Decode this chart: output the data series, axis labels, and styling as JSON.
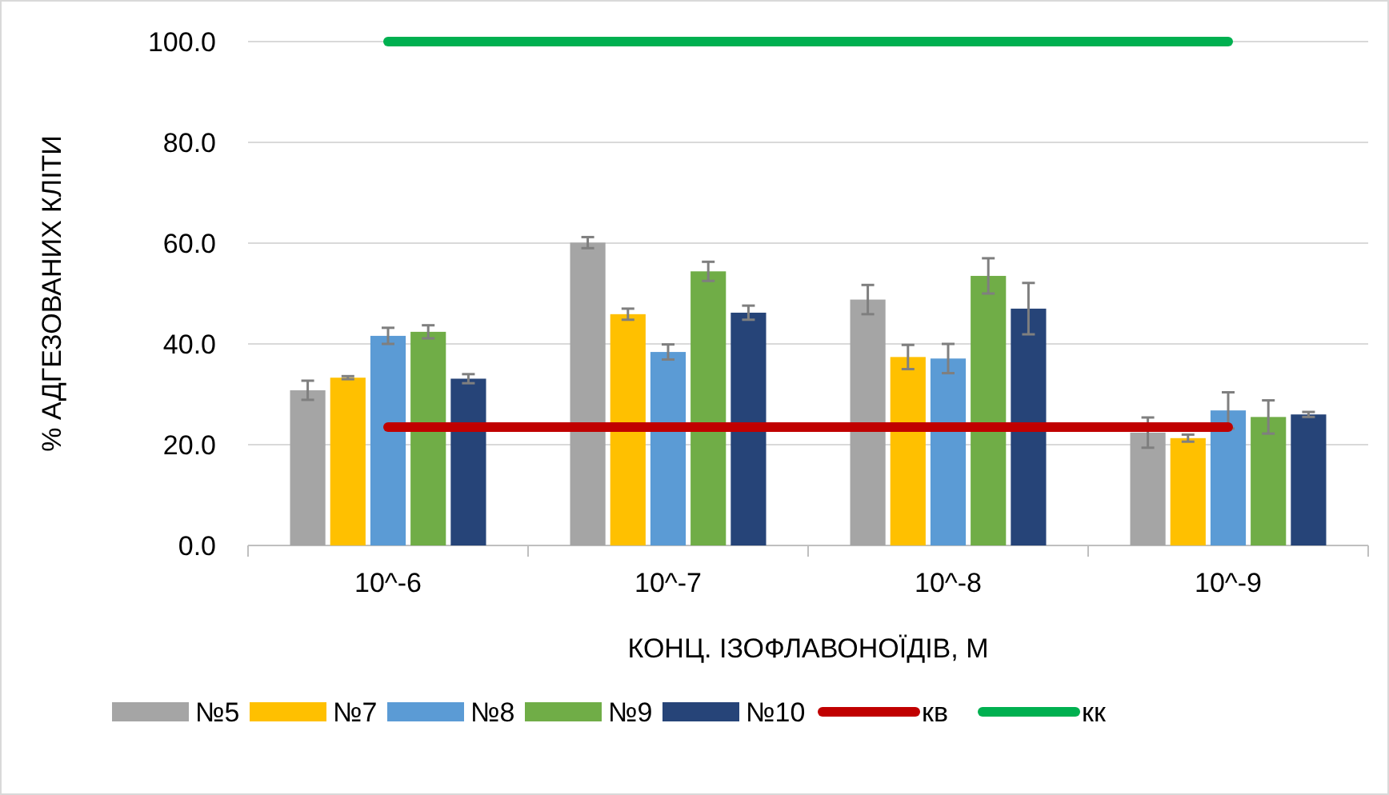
{
  "chart_data": {
    "type": "bar",
    "xlabel": "КОНЦ. ІЗОФЛАВОНОЇДІВ, М",
    "ylabel": "% АДГЕЗОВАНИХ КЛІТИ",
    "categories": [
      "10^-6",
      "10^-7",
      "10^-8",
      "10^-9"
    ],
    "ylim": [
      0,
      100
    ],
    "yticks": [
      {
        "value": 0,
        "label": "0.0"
      },
      {
        "value": 20,
        "label": "20.0"
      },
      {
        "value": 40,
        "label": "40.0"
      },
      {
        "value": 60,
        "label": "60.0"
      },
      {
        "value": 80,
        "label": "80.0"
      },
      {
        "value": 100,
        "label": "100.0"
      }
    ],
    "grid": "y",
    "legend": "bottom",
    "series": [
      {
        "name": "№5",
        "color": "#a5a5a5",
        "values": [
          30.8,
          60.1,
          48.8,
          22.4
        ],
        "errors": [
          1.9,
          1.1,
          2.9,
          3.0
        ]
      },
      {
        "name": "№7",
        "color": "#ffc000",
        "values": [
          33.3,
          45.9,
          37.4,
          21.3
        ],
        "errors": [
          0.3,
          1.1,
          2.4,
          0.7
        ]
      },
      {
        "name": "№8",
        "color": "#5b9bd5",
        "values": [
          41.6,
          38.4,
          37.1,
          26.8
        ],
        "errors": [
          1.6,
          1.5,
          2.9,
          3.6
        ]
      },
      {
        "name": "№9",
        "color": "#70ad47",
        "values": [
          42.4,
          54.4,
          53.5,
          25.5
        ],
        "errors": [
          1.3,
          1.9,
          3.5,
          3.3
        ]
      },
      {
        "name": "№10",
        "color": "#264478",
        "values": [
          33.1,
          46.2,
          47.0,
          26.0
        ],
        "errors": [
          0.9,
          1.4,
          5.1,
          0.5
        ]
      },
      {
        "name": "кв",
        "type": "line",
        "color": "#c00000",
        "values": [
          23.5,
          23.5,
          23.5,
          23.5
        ]
      },
      {
        "name": "кк",
        "type": "line",
        "color": "#00b050",
        "values": [
          100,
          100,
          100,
          100
        ]
      }
    ]
  }
}
